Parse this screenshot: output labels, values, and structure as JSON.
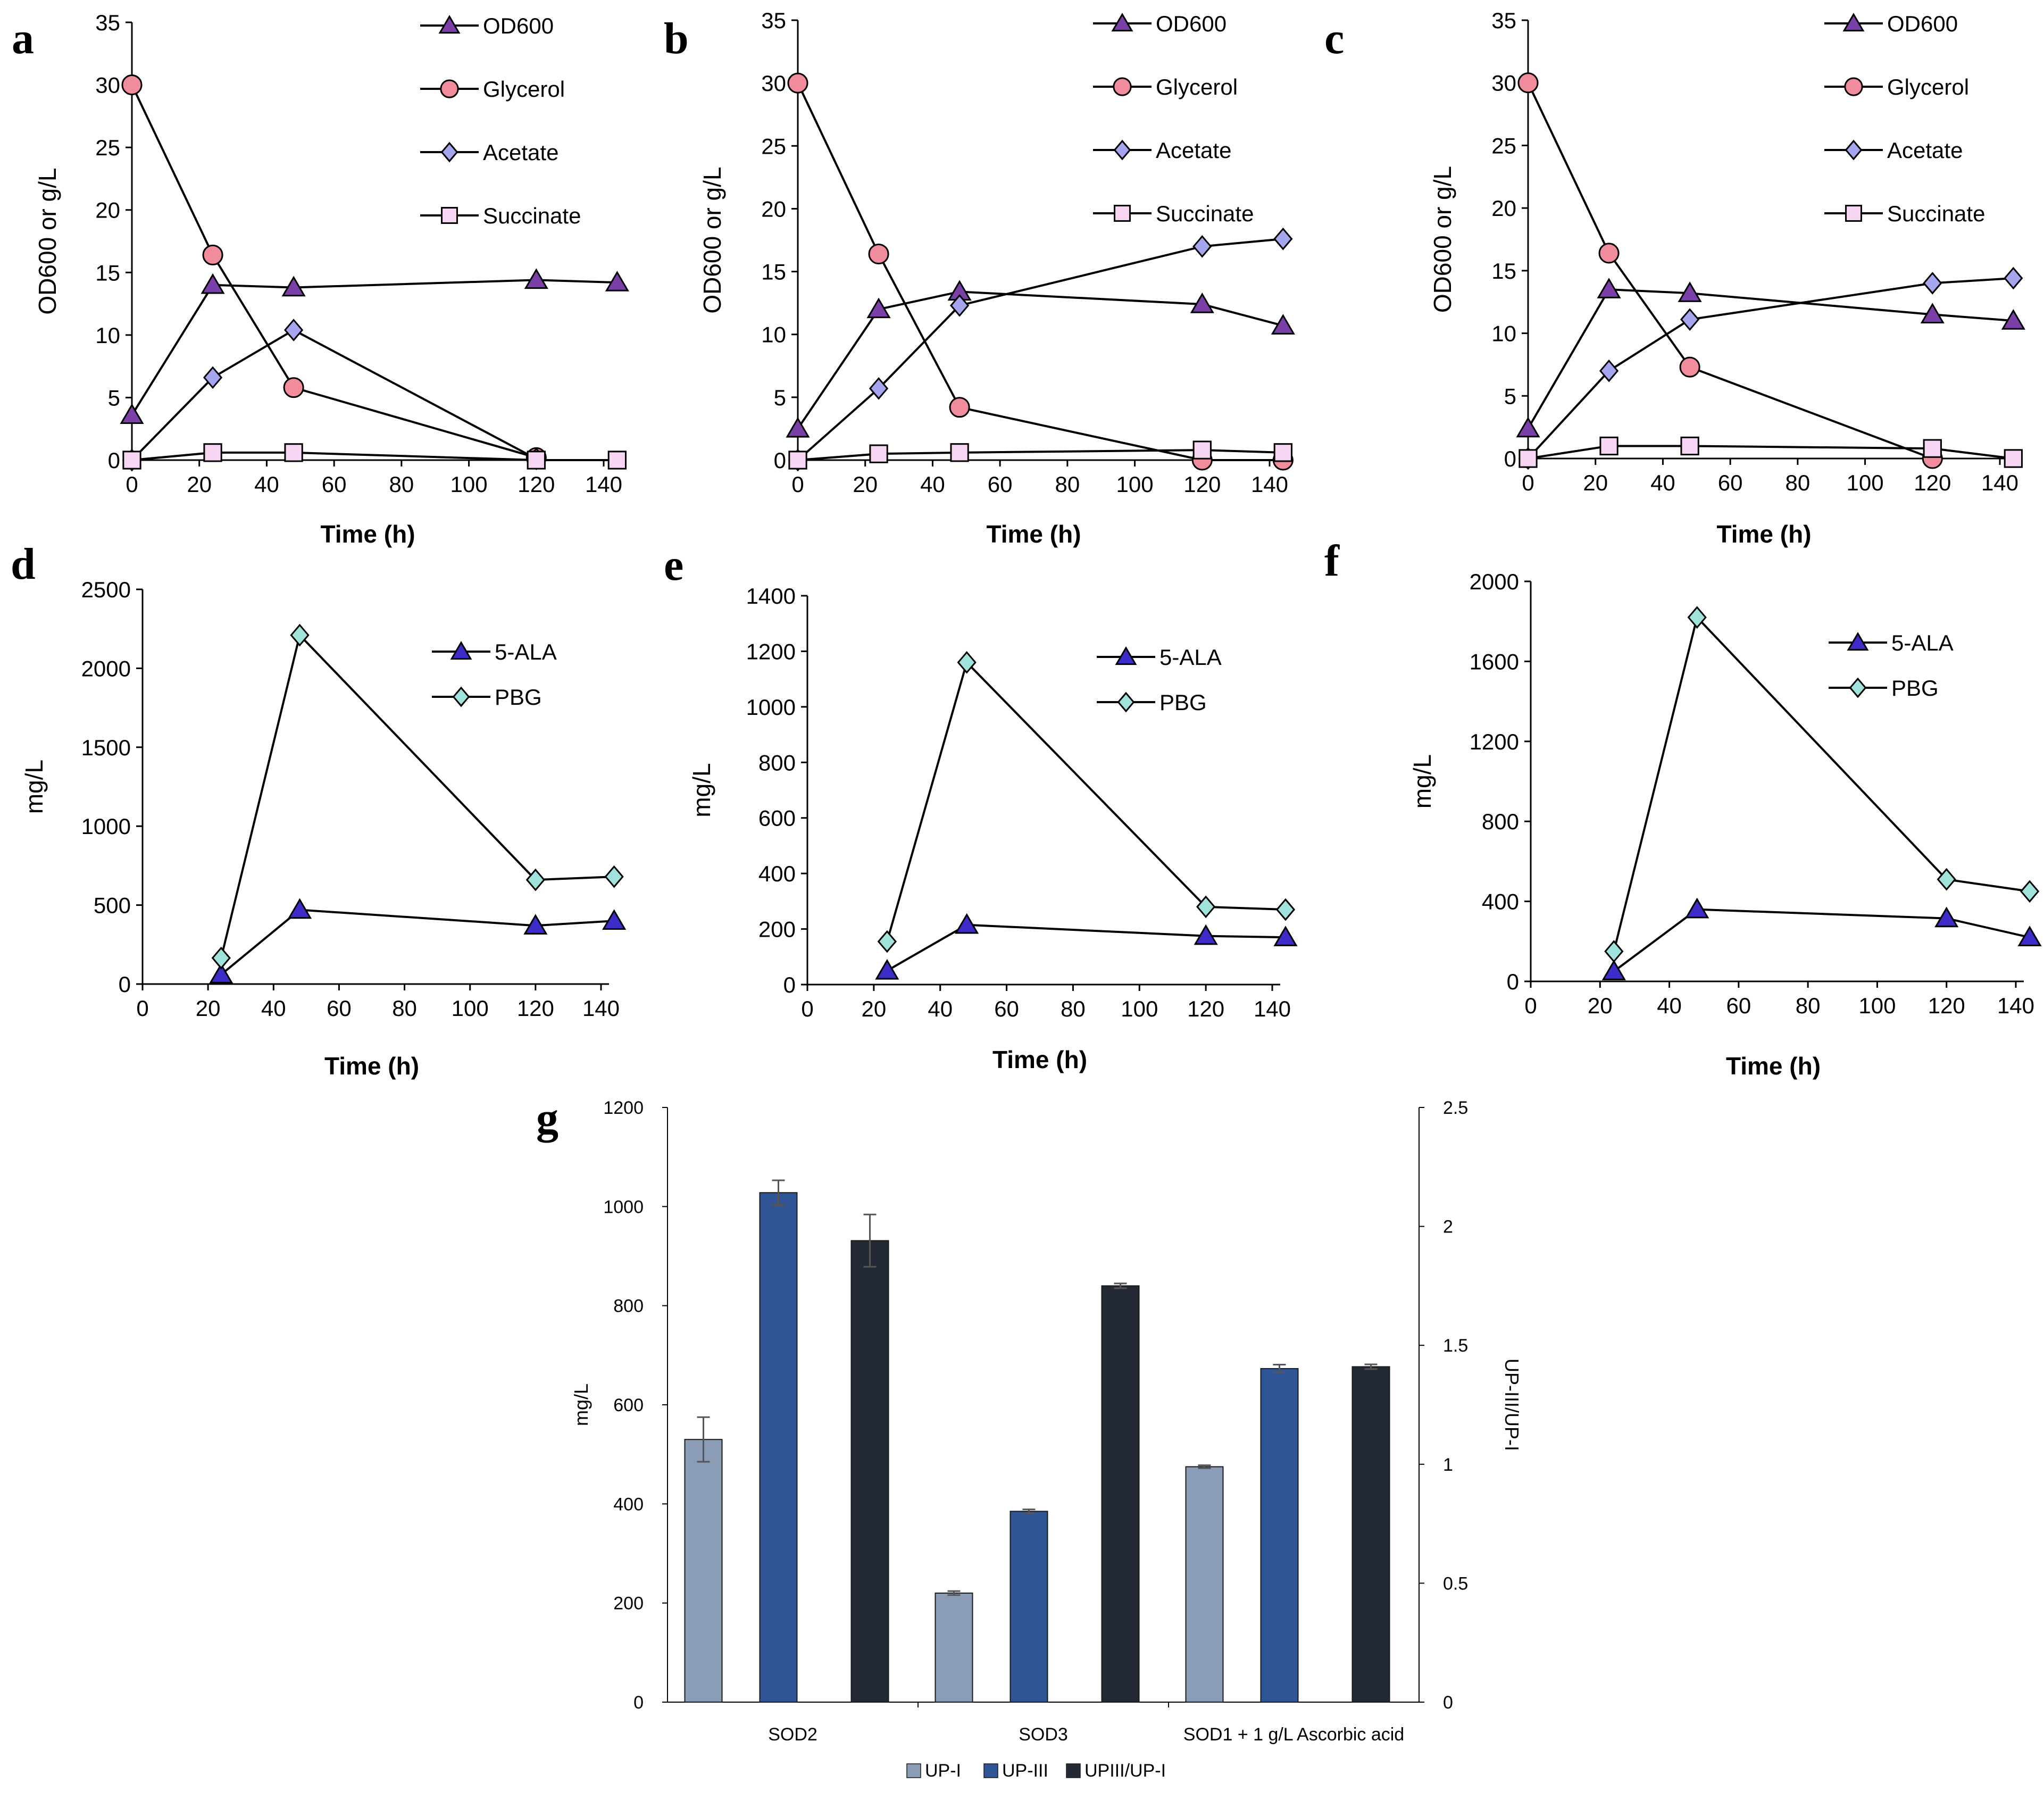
{
  "colors": {
    "od600": "#7b3fa8",
    "glycerol": "#f08c9c",
    "acetate": "#a6a6ee",
    "succinate": "#f6d6f2",
    "ala": "#3d2cc8",
    "pbg": "#9fe3dc",
    "up1": "#8a9cb6",
    "up3": "#2f5597",
    "ratio": "#232a36",
    "line": "#000000",
    "error_bar": "#555555"
  },
  "chart_data": [
    {
      "panel": "a",
      "type": "line",
      "xlabel": "Time (h)",
      "ylabel": "OD600 or g/L",
      "xlim": [
        0,
        140
      ],
      "ylim": [
        0,
        35
      ],
      "xticks": [
        0,
        20,
        40,
        60,
        80,
        100,
        120,
        140
      ],
      "yticks": [
        0,
        5,
        10,
        15,
        20,
        25,
        30,
        35
      ],
      "series": [
        {
          "name": "OD600",
          "marker": "triangle",
          "color_key": "od600",
          "x": [
            0,
            24,
            48,
            120,
            144
          ],
          "y": [
            3.6,
            14.0,
            13.8,
            14.4,
            14.2
          ]
        },
        {
          "name": "Glycerol",
          "marker": "circle",
          "color_key": "glycerol",
          "x": [
            0,
            24,
            48,
            120
          ],
          "y": [
            30.0,
            16.4,
            5.8,
            0.2
          ]
        },
        {
          "name": "Acetate",
          "marker": "diamond",
          "color_key": "acetate",
          "x": [
            0,
            24,
            48,
            120
          ],
          "y": [
            0.0,
            6.6,
            10.4,
            0.1
          ]
        },
        {
          "name": "Succinate",
          "marker": "square",
          "color_key": "succinate",
          "x": [
            0,
            24,
            48,
            120,
            144
          ],
          "y": [
            0.0,
            0.6,
            0.6,
            0.0,
            0.0
          ]
        }
      ]
    },
    {
      "panel": "b",
      "type": "line",
      "xlabel": "Time (h)",
      "ylabel": "OD600 or g/L",
      "xlim": [
        0,
        140
      ],
      "ylim": [
        0,
        35
      ],
      "xticks": [
        0,
        20,
        40,
        60,
        80,
        100,
        120,
        140
      ],
      "yticks": [
        0,
        5,
        10,
        15,
        20,
        25,
        30,
        35
      ],
      "series": [
        {
          "name": "OD600",
          "marker": "triangle",
          "color_key": "od600",
          "x": [
            0,
            24,
            48,
            120,
            144
          ],
          "y": [
            2.5,
            12.0,
            13.4,
            12.4,
            10.7
          ]
        },
        {
          "name": "Glycerol",
          "marker": "circle",
          "color_key": "glycerol",
          "x": [
            0,
            24,
            48,
            120,
            144
          ],
          "y": [
            30.0,
            16.4,
            4.2,
            0.0,
            0.0
          ]
        },
        {
          "name": "Acetate",
          "marker": "diamond",
          "color_key": "acetate",
          "x": [
            0,
            24,
            48,
            120,
            144
          ],
          "y": [
            0.0,
            5.7,
            12.3,
            17.0,
            17.6
          ]
        },
        {
          "name": "Succinate",
          "marker": "square",
          "color_key": "succinate",
          "x": [
            0,
            24,
            48,
            120,
            144
          ],
          "y": [
            0.0,
            0.5,
            0.6,
            0.8,
            0.6
          ]
        }
      ]
    },
    {
      "panel": "c",
      "type": "line",
      "xlabel": "Time (h)",
      "ylabel": "OD600 or g/L",
      "xlim": [
        0,
        140
      ],
      "ylim": [
        0,
        35
      ],
      "xticks": [
        0,
        20,
        40,
        60,
        80,
        100,
        120,
        140
      ],
      "yticks": [
        0,
        5,
        10,
        15,
        20,
        25,
        30,
        35
      ],
      "series": [
        {
          "name": "OD600",
          "marker": "triangle",
          "color_key": "od600",
          "x": [
            0,
            24,
            48,
            120,
            144
          ],
          "y": [
            2.4,
            13.5,
            13.2,
            11.5,
            11.0
          ]
        },
        {
          "name": "Glycerol",
          "marker": "circle",
          "color_key": "glycerol",
          "x": [
            0,
            24,
            48,
            120
          ],
          "y": [
            30.0,
            16.4,
            7.3,
            0.0
          ]
        },
        {
          "name": "Acetate",
          "marker": "diamond",
          "color_key": "acetate",
          "x": [
            0,
            24,
            48,
            120,
            144
          ],
          "y": [
            0.0,
            7.0,
            11.1,
            14.0,
            14.4
          ]
        },
        {
          "name": "Succinate",
          "marker": "square",
          "color_key": "succinate",
          "x": [
            0,
            24,
            48,
            120,
            144
          ],
          "y": [
            0.0,
            1.0,
            1.0,
            0.8,
            0.0
          ]
        }
      ]
    },
    {
      "panel": "d",
      "type": "line",
      "xlabel": "Time (h)",
      "ylabel": "mg/L",
      "xlim": [
        0,
        140
      ],
      "ylim": [
        0,
        2500
      ],
      "xticks": [
        0,
        20,
        40,
        60,
        80,
        100,
        120,
        140
      ],
      "yticks": [
        0,
        500,
        1000,
        1500,
        2000,
        2500
      ],
      "series": [
        {
          "name": "5-ALA",
          "marker": "triangle",
          "color_key": "ala",
          "x": [
            24,
            48,
            120,
            144
          ],
          "y": [
            60,
            470,
            370,
            400
          ]
        },
        {
          "name": "PBG",
          "marker": "diamond",
          "color_key": "pbg",
          "x": [
            24,
            48,
            120,
            144
          ],
          "y": [
            165,
            2210,
            660,
            680
          ]
        }
      ]
    },
    {
      "panel": "e",
      "type": "line",
      "xlabel": "Time (h)",
      "ylabel": "mg/L",
      "xlim": [
        0,
        140
      ],
      "ylim": [
        0,
        1400
      ],
      "xticks": [
        0,
        20,
        40,
        60,
        80,
        100,
        120,
        140
      ],
      "yticks": [
        0,
        200,
        400,
        600,
        800,
        1000,
        1200,
        1400
      ],
      "series": [
        {
          "name": "5-ALA",
          "marker": "triangle",
          "color_key": "ala",
          "x": [
            24,
            48,
            120,
            144
          ],
          "y": [
            50,
            215,
            175,
            170
          ]
        },
        {
          "name": "PBG",
          "marker": "diamond",
          "color_key": "pbg",
          "x": [
            24,
            48,
            120,
            144
          ],
          "y": [
            155,
            1160,
            280,
            270
          ]
        }
      ]
    },
    {
      "panel": "f",
      "type": "line",
      "xlabel": "Time (h)",
      "ylabel": "mg/L",
      "xlim": [
        0,
        140
      ],
      "ylim": [
        0,
        2000
      ],
      "xticks": [
        0,
        20,
        40,
        60,
        80,
        100,
        120,
        140
      ],
      "yticks": [
        0,
        400,
        800,
        1200,
        1600,
        2000
      ],
      "series": [
        {
          "name": "5-ALA",
          "marker": "triangle",
          "color_key": "ala",
          "x": [
            24,
            48,
            120,
            144
          ],
          "y": [
            50,
            360,
            315,
            220
          ]
        },
        {
          "name": "PBG",
          "marker": "diamond",
          "color_key": "pbg",
          "x": [
            24,
            48,
            120,
            144
          ],
          "y": [
            150,
            1820,
            510,
            450
          ]
        }
      ]
    },
    {
      "panel": "g",
      "type": "bar",
      "ylabel": "mg/L",
      "y2label": "UP-III/UP-I",
      "ylim": [
        0,
        1200
      ],
      "y2lim": [
        0,
        2.5
      ],
      "yticks": [
        0,
        200,
        400,
        600,
        800,
        1000,
        1200
      ],
      "y2ticks": [
        0,
        0.5,
        1,
        1.5,
        2,
        2.5
      ],
      "categories": [
        "SOD2",
        "SOD3",
        "SOD1 + 1 g/L Ascorbic acid"
      ],
      "series": [
        {
          "name": "UP-I",
          "axis": "left",
          "color_key": "up1",
          "values": [
            530,
            220,
            475
          ],
          "errors": [
            45,
            4,
            3
          ]
        },
        {
          "name": "UP-III",
          "axis": "left",
          "color_key": "up3",
          "values": [
            1028,
            385,
            673
          ],
          "errors": [
            25,
            4,
            8
          ]
        },
        {
          "name": "UPIII/UP-I",
          "axis": "right",
          "color_key": "ratio",
          "values": [
            1.94,
            1.75,
            1.41
          ],
          "errors": [
            0.11,
            0.01,
            0.01
          ]
        }
      ]
    }
  ]
}
